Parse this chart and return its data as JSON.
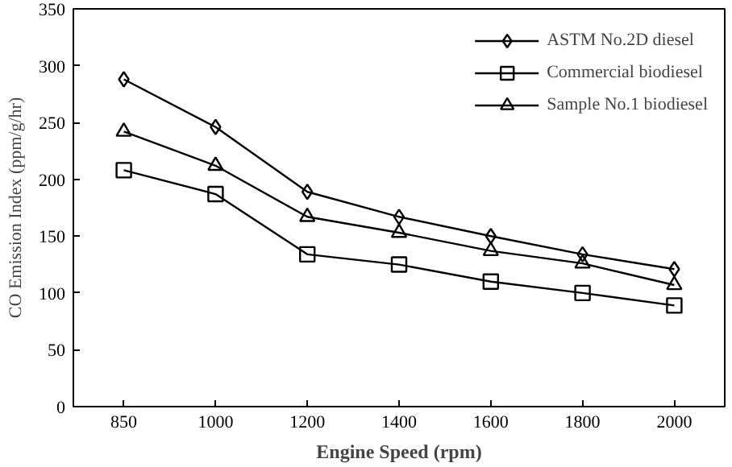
{
  "chart_data": {
    "type": "line",
    "xlabel": "Engine Speed (rpm)",
    "ylabel": "CO Emission Index (ppm/g/hr)",
    "categories": [
      "850",
      "1000",
      "1200",
      "1400",
      "1600",
      "1800",
      "2000"
    ],
    "ylim": [
      0,
      350
    ],
    "yticks": [
      0,
      50,
      100,
      150,
      200,
      250,
      300,
      350
    ],
    "grid": false,
    "legend": "top right",
    "line_style": "solid",
    "series": [
      {
        "name": "ASTM No.2D diesel",
        "color": "#000000",
        "marker": "diamond",
        "values": [
          288,
          246,
          189,
          167,
          150,
          134,
          121
        ]
      },
      {
        "name": "Commercial biodiesel",
        "color": "#000000",
        "marker": "square",
        "values": [
          208,
          187,
          134,
          125,
          110,
          100,
          89
        ]
      },
      {
        "name": "Sample No.1 biodiesel",
        "color": "#000000",
        "marker": "triangle",
        "values": [
          242,
          212,
          167,
          153,
          137,
          126,
          107
        ]
      }
    ]
  }
}
